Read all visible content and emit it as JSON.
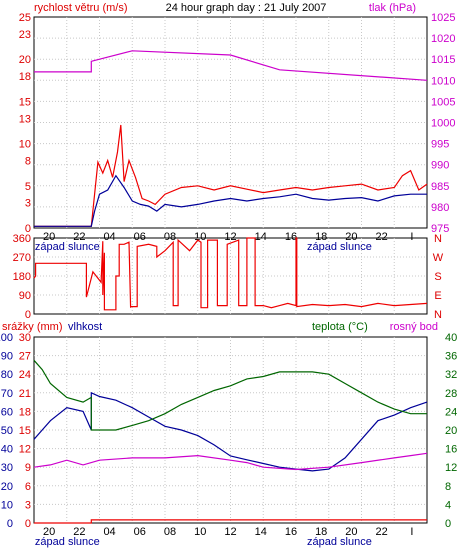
{
  "chart_data": [
    {
      "type": "line",
      "title": "24 hour graph day : 21 July 2007",
      "left_label": "rychlost větru (m/s)",
      "right_label": "tlak (hPa)",
      "x_ticks": [
        "20",
        "22",
        "04",
        "06",
        "08",
        "10",
        "12",
        "14",
        "16",
        "18",
        "20",
        "22",
        "I"
      ],
      "x_annotations": [
        {
          "text": "západ slunce",
          "near_tick": "22"
        },
        {
          "text": "západ slunce",
          "near_tick": "20"
        }
      ],
      "y_left": {
        "min": 0,
        "max": 25,
        "ticks": [
          0,
          3,
          5,
          8,
          10,
          13,
          15,
          18,
          20,
          23,
          25
        ]
      },
      "y_right": {
        "min": 975,
        "max": 1025,
        "ticks": [
          975,
          980,
          985,
          990,
          995,
          1000,
          1005,
          1010,
          1015,
          1020,
          1025
        ]
      },
      "grid": true,
      "series": [
        {
          "role": "pressure",
          "axis": "right",
          "color": "#cc00cc",
          "x": [
            0,
            3.5,
            3.5,
            6,
            12,
            15,
            24
          ],
          "y": [
            1012,
            1012,
            1014.5,
            1017,
            1016,
            1012.5,
            1010
          ]
        },
        {
          "role": "gust",
          "axis": "left",
          "color": "#ee0000",
          "x": [
            0,
            3.5,
            3.7,
            3.9,
            4.2,
            4.5,
            4.8,
            5.1,
            5.3,
            5.5,
            5.8,
            6.2,
            6.6,
            7,
            7.4,
            8,
            9,
            10,
            11,
            12,
            13,
            14,
            15,
            16,
            17,
            18,
            19,
            20,
            21,
            22,
            22.5,
            23,
            23.5,
            24
          ],
          "y": [
            0.2,
            0.2,
            4,
            7.8,
            6.5,
            8,
            6,
            9,
            12.2,
            5.5,
            8,
            6,
            3.5,
            3.2,
            2.8,
            4,
            4.8,
            5,
            4.5,
            5,
            4.6,
            4.2,
            4.5,
            4.8,
            4.5,
            4.8,
            5,
            5.2,
            4.5,
            4.8,
            6.2,
            6.8,
            4.5,
            5.2
          ]
        },
        {
          "role": "average wind",
          "axis": "left",
          "color": "#000099",
          "x": [
            0,
            3.5,
            3.7,
            4,
            4.5,
            5,
            5.5,
            6,
            6.5,
            7,
            7.5,
            8,
            9,
            10,
            11,
            12,
            13,
            14,
            15,
            16,
            17,
            18,
            19,
            20,
            21,
            22,
            23,
            24
          ],
          "y": [
            0.2,
            0.2,
            2,
            4,
            4.5,
            6.2,
            4.8,
            3.2,
            2.8,
            2.6,
            2,
            2.8,
            2.5,
            2.8,
            3.2,
            3.5,
            3.2,
            3.5,
            3.7,
            4,
            3.5,
            3.3,
            3.5,
            3.6,
            3.2,
            3.8,
            4,
            4
          ]
        }
      ]
    },
    {
      "type": "line",
      "left_label": "",
      "right_label": "",
      "y_left": {
        "min": 0,
        "max": 360,
        "ticks": [
          0,
          90,
          180,
          270,
          360
        ]
      },
      "y_right_compass": [
        "N",
        "W",
        "S",
        "E",
        "N"
      ],
      "grid": true,
      "series": [
        {
          "role": "wind direction",
          "axis": "left",
          "color": "#ee0000",
          "x": [
            0,
            0.1,
            0.1,
            3.2,
            3.2,
            3.6,
            4.1,
            4.2,
            4.2,
            4.3,
            4.3,
            5,
            5,
            5.2,
            5.2,
            5.5,
            5.8,
            5.9,
            5.9,
            6.3,
            6.3,
            7,
            7.5,
            7.5,
            8,
            8.5,
            8.5,
            8.8,
            8.8,
            9.5,
            10,
            10.2,
            10.2,
            10.6,
            10.6,
            11.2,
            11.2,
            11.8,
            11.8,
            12.5,
            12.5,
            13,
            13,
            13.5,
            13.5,
            14,
            14.5,
            15,
            15.5,
            16,
            16,
            16.05,
            16.05,
            17,
            18,
            19,
            20,
            21,
            22,
            23,
            24
          ],
          "y": [
            170,
            180,
            240,
            240,
            80,
            200,
            150,
            345,
            90,
            290,
            20,
            20,
            180,
            180,
            330,
            330,
            340,
            30,
            35,
            35,
            320,
            330,
            320,
            270,
            300,
            340,
            40,
            40,
            350,
            300,
            350,
            340,
            30,
            30,
            350,
            350,
            40,
            40,
            330,
            350,
            40,
            40,
            360,
            360,
            40,
            40,
            30,
            40,
            50,
            40,
            360,
            360,
            35,
            45,
            40,
            45,
            35,
            50,
            40,
            45,
            50
          ]
        }
      ]
    },
    {
      "type": "line",
      "left_label": "srážky (mm)",
      "left2_label": "vlhkost",
      "right_label_1": "teplota (°C)",
      "right_label_2": "rosný bod",
      "y_left": {
        "min": 0,
        "max": 30,
        "ticks": [
          0,
          3,
          6,
          9,
          12,
          15,
          18,
          21,
          24,
          27,
          30
        ]
      },
      "y_left2": {
        "min": 0,
        "max": 100,
        "ticks": [
          0,
          10,
          20,
          30,
          40,
          50,
          60,
          70,
          80,
          90,
          100
        ]
      },
      "y_right": {
        "min": 0,
        "max": 40,
        "ticks": [
          0,
          4,
          8,
          12,
          16,
          20,
          24,
          28,
          32,
          36,
          40
        ]
      },
      "grid": true,
      "series": [
        {
          "role": "precipitation",
          "axis": "left",
          "color": "#ee0000",
          "x": [
            0,
            3.5,
            3.5,
            24
          ],
          "y": [
            0,
            0,
            0.5,
            0.5
          ]
        },
        {
          "role": "humidity",
          "axis": "left2",
          "color": "#000099",
          "x": [
            0,
            0.5,
            1,
            2,
            3,
            3.5,
            3.5,
            4,
            5,
            6,
            7,
            8,
            9,
            10,
            11,
            12,
            13,
            14,
            15,
            16,
            17,
            18,
            19,
            20,
            21,
            22,
            23,
            24
          ],
          "y": [
            45,
            50,
            55,
            62,
            60,
            50,
            70,
            68,
            66,
            62,
            57,
            52,
            50,
            47,
            42,
            36,
            34,
            32,
            30,
            29,
            28,
            29,
            35,
            45,
            55,
            58,
            62,
            65
          ]
        },
        {
          "role": "temperature",
          "axis": "right",
          "color": "#006600",
          "x": [
            0,
            0.5,
            1,
            2,
            3,
            3.5,
            3.5,
            4,
            5,
            6,
            7,
            8,
            9,
            10,
            11,
            12,
            13,
            14,
            15,
            16,
            17,
            18,
            19,
            20,
            21,
            22,
            23,
            24
          ],
          "y": [
            35,
            33,
            30,
            27,
            26,
            27,
            20,
            20,
            20,
            21,
            22,
            23.5,
            25.5,
            27,
            28.5,
            29.5,
            31,
            31.5,
            32.5,
            32.5,
            32.5,
            32,
            30,
            28,
            26,
            24.5,
            23.5,
            23.5
          ]
        },
        {
          "role": "dew point",
          "axis": "right",
          "color": "#cc00cc",
          "x": [
            0,
            1,
            2,
            3,
            3.5,
            4,
            6,
            8,
            10,
            12,
            13,
            14,
            16,
            18,
            20,
            22,
            23,
            24
          ],
          "y": [
            12,
            12.5,
            13.5,
            12.5,
            13,
            13.5,
            14,
            14,
            14.5,
            13.5,
            13,
            12,
            11.5,
            12,
            13,
            14,
            14.5,
            15
          ]
        }
      ]
    }
  ]
}
